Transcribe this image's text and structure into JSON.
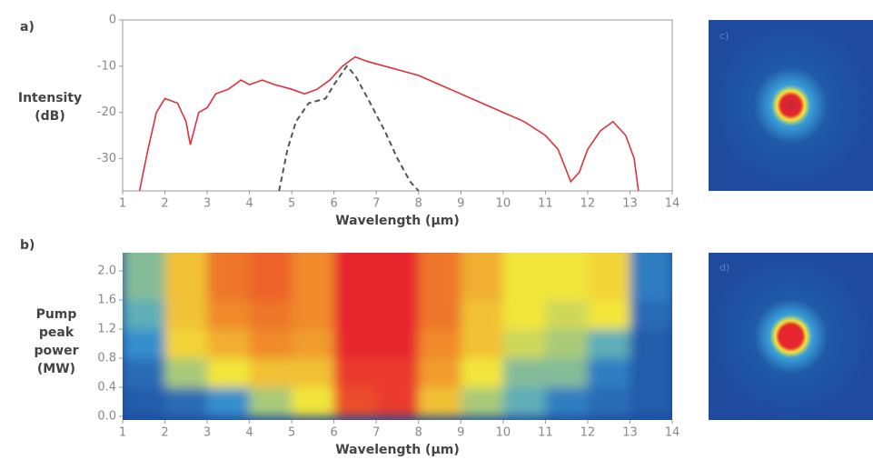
{
  "chart_data": [
    {
      "type": "line",
      "label": "a)",
      "ylabel": [
        "Intensity",
        "(dB)"
      ],
      "xlabel": "Wavelength (µm)",
      "xlim": [
        1,
        14
      ],
      "xticks": [
        1,
        2,
        3,
        4,
        5,
        6,
        7,
        8,
        9,
        10,
        11,
        12,
        13,
        14
      ],
      "ylim": [
        -37,
        0
      ],
      "yticks": [
        0,
        -10,
        -20,
        -30
      ],
      "series": [
        {
          "color": "#e0303c",
          "dash": false,
          "x": [
            1.4,
            1.6,
            1.8,
            2.0,
            2.3,
            2.5,
            2.6,
            2.8,
            3.0,
            3.2,
            3.5,
            3.8,
            4.0,
            4.3,
            4.6,
            5.0,
            5.3,
            5.6,
            5.9,
            6.2,
            6.5,
            6.8,
            7.2,
            7.6,
            8.0,
            8.5,
            9.0,
            9.5,
            10.0,
            10.5,
            11.0,
            11.3,
            11.6,
            11.8,
            12.0,
            12.3,
            12.6,
            12.9,
            13.1,
            13.2
          ],
          "values": [
            -37,
            -28,
            -20,
            -17,
            -18,
            -22,
            -27,
            -20,
            -19,
            -16,
            -15,
            -13,
            -14,
            -13,
            -14,
            -15,
            -16,
            -15,
            -13,
            -10,
            -8,
            -9,
            -10,
            -11,
            -12,
            -14,
            -16,
            -18,
            -20,
            -22,
            -25,
            -28,
            -35,
            -33,
            -28,
            -24,
            -22,
            -25,
            -30,
            -37
          ]
        },
        {
          "color": "#555555",
          "dash": true,
          "x": [
            4.7,
            4.9,
            5.1,
            5.4,
            5.8,
            6.0,
            6.3,
            6.5,
            6.8,
            7.2,
            7.5,
            7.8,
            8.0
          ],
          "values": [
            -37,
            -28,
            -22,
            -18,
            -17,
            -14,
            -10,
            -12,
            -17,
            -24,
            -30,
            -35,
            -37
          ]
        }
      ]
    },
    {
      "type": "heatmap",
      "label": "b)",
      "ylabel": [
        "Pump",
        "peak",
        "power",
        "(MW)"
      ],
      "xlabel": "Wavelength (µm)",
      "xlim": [
        1,
        14
      ],
      "xticks": [
        1,
        2,
        3,
        4,
        5,
        6,
        7,
        8,
        9,
        10,
        11,
        12,
        13,
        14
      ],
      "ylim": [
        -0.05,
        2.25
      ],
      "yticks": [
        {
          "value": 0,
          "label": "0.0"
        },
        0.4,
        0.8,
        1.2,
        1.6,
        {
          "value": 2,
          "label": "2.0"
        }
      ],
      "colors": [
        "#1f4a9e",
        "#3aa0d8",
        "#f2e63a",
        "#f08a2a",
        "#e8262e"
      ],
      "x": [
        1.5,
        2.5,
        3.5,
        4.5,
        5.5,
        6.5,
        7.5,
        8.5,
        9.5,
        10.5,
        11.5,
        12.5,
        13.5
      ],
      "y": [
        0.2,
        0.6,
        1.0,
        1.4,
        1.8,
        2.2
      ],
      "z": [
        [
          0.05,
          0.1,
          0.2,
          0.4,
          0.5,
          0.9,
          0.95,
          0.6,
          0.4,
          0.3,
          0.15,
          0.1,
          0.05
        ],
        [
          0.1,
          0.4,
          0.5,
          0.6,
          0.6,
          0.95,
          0.95,
          0.7,
          0.5,
          0.35,
          0.35,
          0.15,
          0.05
        ],
        [
          0.2,
          0.55,
          0.65,
          0.75,
          0.7,
          1.0,
          1.0,
          0.75,
          0.6,
          0.45,
          0.4,
          0.3,
          0.05
        ],
        [
          0.3,
          0.6,
          0.75,
          0.8,
          0.75,
          1.0,
          1.0,
          0.8,
          0.6,
          0.5,
          0.45,
          0.5,
          0.1
        ],
        [
          0.35,
          0.6,
          0.8,
          0.85,
          0.75,
          1.0,
          1.0,
          0.8,
          0.65,
          0.5,
          0.5,
          0.55,
          0.15
        ],
        [
          0.35,
          0.6,
          0.8,
          0.85,
          0.75,
          1.0,
          1.0,
          0.8,
          0.65,
          0.5,
          0.5,
          0.55,
          0.15
        ]
      ]
    }
  ],
  "images": [
    {
      "label": "c)"
    },
    {
      "label": "d)"
    }
  ]
}
